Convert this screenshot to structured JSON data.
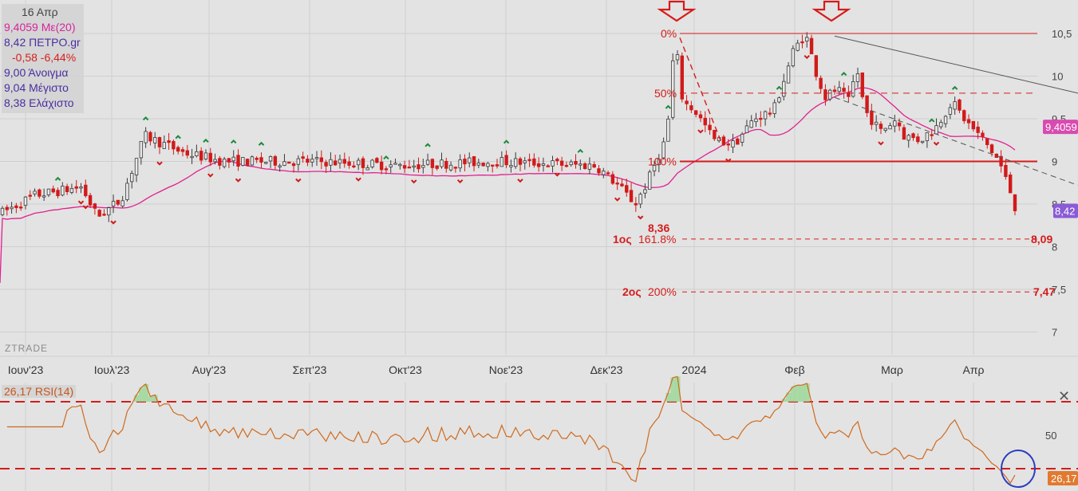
{
  "info_panel": {
    "date": "16 Απρ",
    "ma_line": "9,4059 Με(20)",
    "last_line": "8,42 ΠΕΤΡΟ.gr",
    "change_line": "-0,58 -6,44%",
    "open_line": "9,00 Άνοιγμα",
    "high_line": "9,04 Μέγιστο",
    "low_line": "8,38 Ελάχιστο"
  },
  "watermark": "ZTRADE",
  "rsi_label": "26,17 RSI(14)",
  "close_glyph": "✕",
  "colors": {
    "up": "#3a3a3a",
    "down": "#d11a1a",
    "ma": "#e0208f",
    "rsi": "#cf6a1e",
    "annot": "#d61b1b",
    "grid": "#cfcfcf",
    "bg": "#e3e3e3",
    "marker_up": "#1a8a3a",
    "last_badge": "#8a5bd6",
    "ma_badge": "#d84bb0",
    "rsi_badge": "#e07a30"
  },
  "chart_data": {
    "type": "candlestick",
    "x_labels": [
      "Ιουν'23",
      "Ιουλ'23",
      "Αυγ'23",
      "Σεπ'23",
      "Οκτ'23",
      "Νοε'23",
      "Δεκ'23",
      "2024",
      "Φεβ",
      "Μαρ",
      "Απρ"
    ],
    "y_ticks": [
      "10,5",
      "10",
      "9,5",
      "9",
      "8,5",
      "8",
      "7,5",
      "7"
    ],
    "price_badges": {
      "ma": "9,4059",
      "last": "8,42"
    },
    "ma_period": 20,
    "annotations": {
      "fib_levels": [
        {
          "label": "0%",
          "value": 10.5
        },
        {
          "label": "50%",
          "value": 9.8
        },
        {
          "label": "100%",
          "value": 9.0
        },
        {
          "label": "161.8%",
          "value": 8.09,
          "prefix": "1ος",
          "target": "8,09"
        },
        {
          "label": "200%",
          "value": 7.47,
          "prefix": "2ος",
          "target": "7,47"
        }
      ],
      "low_label": "8,36"
    },
    "rsi": {
      "period": 14,
      "value": "26,17",
      "levels": [
        70,
        30
      ],
      "tick": "50"
    }
  }
}
